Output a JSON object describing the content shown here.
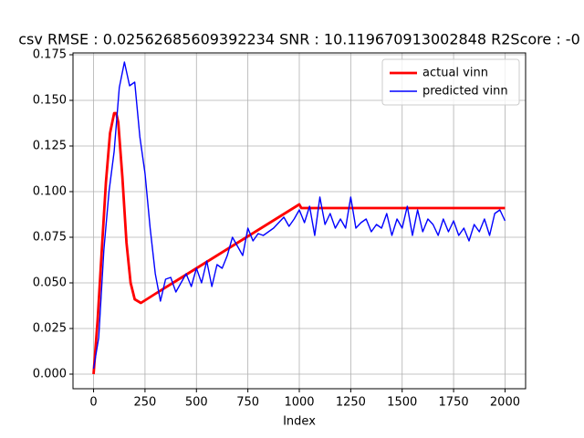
{
  "chart_data": {
    "type": "line",
    "title": "csv RMSE : 0.02562685609392234  SNR : 10.119670913002848 R2Score : -0",
    "xlabel": "Index",
    "xlim": [
      -100,
      2100
    ],
    "xticks": [
      0,
      250,
      500,
      750,
      1000,
      1250,
      1500,
      1750,
      2000
    ],
    "ylim": [
      -0.008,
      0.176
    ],
    "yticks": [
      {
        "value": 0,
        "label": "0.000"
      },
      {
        "value": 0.025,
        "label": "0.025"
      },
      {
        "value": 0.05,
        "label": "0.050"
      },
      {
        "value": 0.075,
        "label": "0.075"
      },
      {
        "value": 0.1,
        "label": "0.100"
      },
      {
        "value": 0.125,
        "label": "0.125"
      },
      {
        "value": 0.15,
        "label": "0.150"
      },
      {
        "value": 0.175,
        "label": "0.175"
      }
    ],
    "grid": true,
    "legend": "upper-right",
    "series": [
      {
        "name": "actual vinn",
        "color": "#ff0000",
        "width": 2,
        "x": [
          0,
          20,
          40,
          60,
          80,
          100,
          110,
          120,
          140,
          160,
          180,
          200,
          230,
          300,
          400,
          500,
          600,
          700,
          800,
          900,
          1000,
          1010,
          2000
        ],
        "values": [
          0,
          0.03,
          0.068,
          0.105,
          0.132,
          0.143,
          0.143,
          0.138,
          0.108,
          0.072,
          0.05,
          0.041,
          0.039,
          0.044,
          0.051,
          0.058,
          0.065,
          0.072,
          0.079,
          0.086,
          0.093,
          0.091,
          0.091
        ]
      },
      {
        "name": "predicted vinn",
        "color": "#0000ff",
        "width": 1,
        "x": [
          0,
          25,
          50,
          75,
          100,
          125,
          150,
          175,
          200,
          225,
          250,
          275,
          300,
          325,
          350,
          375,
          400,
          425,
          450,
          475,
          500,
          525,
          550,
          575,
          600,
          625,
          650,
          675,
          700,
          725,
          750,
          775,
          800,
          825,
          850,
          875,
          900,
          925,
          950,
          975,
          1000,
          1025,
          1050,
          1075,
          1100,
          1125,
          1150,
          1175,
          1200,
          1225,
          1250,
          1275,
          1300,
          1325,
          1350,
          1375,
          1400,
          1425,
          1450,
          1475,
          1500,
          1525,
          1550,
          1575,
          1600,
          1625,
          1650,
          1675,
          1700,
          1725,
          1750,
          1775,
          1800,
          1825,
          1850,
          1875,
          1900,
          1925,
          1950,
          1975,
          2000
        ],
        "values": [
          0.003,
          0.02,
          0.068,
          0.1,
          0.122,
          0.157,
          0.171,
          0.158,
          0.16,
          0.13,
          0.11,
          0.08,
          0.055,
          0.04,
          0.052,
          0.053,
          0.045,
          0.05,
          0.055,
          0.048,
          0.058,
          0.05,
          0.062,
          0.048,
          0.06,
          0.058,
          0.065,
          0.075,
          0.07,
          0.065,
          0.08,
          0.073,
          0.077,
          0.076,
          0.078,
          0.08,
          0.083,
          0.086,
          0.081,
          0.085,
          0.09,
          0.083,
          0.092,
          0.076,
          0.097,
          0.082,
          0.088,
          0.08,
          0.085,
          0.08,
          0.097,
          0.08,
          0.083,
          0.085,
          0.078,
          0.082,
          0.08,
          0.088,
          0.076,
          0.085,
          0.08,
          0.092,
          0.076,
          0.09,
          0.078,
          0.085,
          0.082,
          0.076,
          0.085,
          0.078,
          0.084,
          0.076,
          0.08,
          0.073,
          0.082,
          0.078,
          0.085,
          0.076,
          0.088,
          0.09,
          0.084
        ]
      }
    ]
  }
}
